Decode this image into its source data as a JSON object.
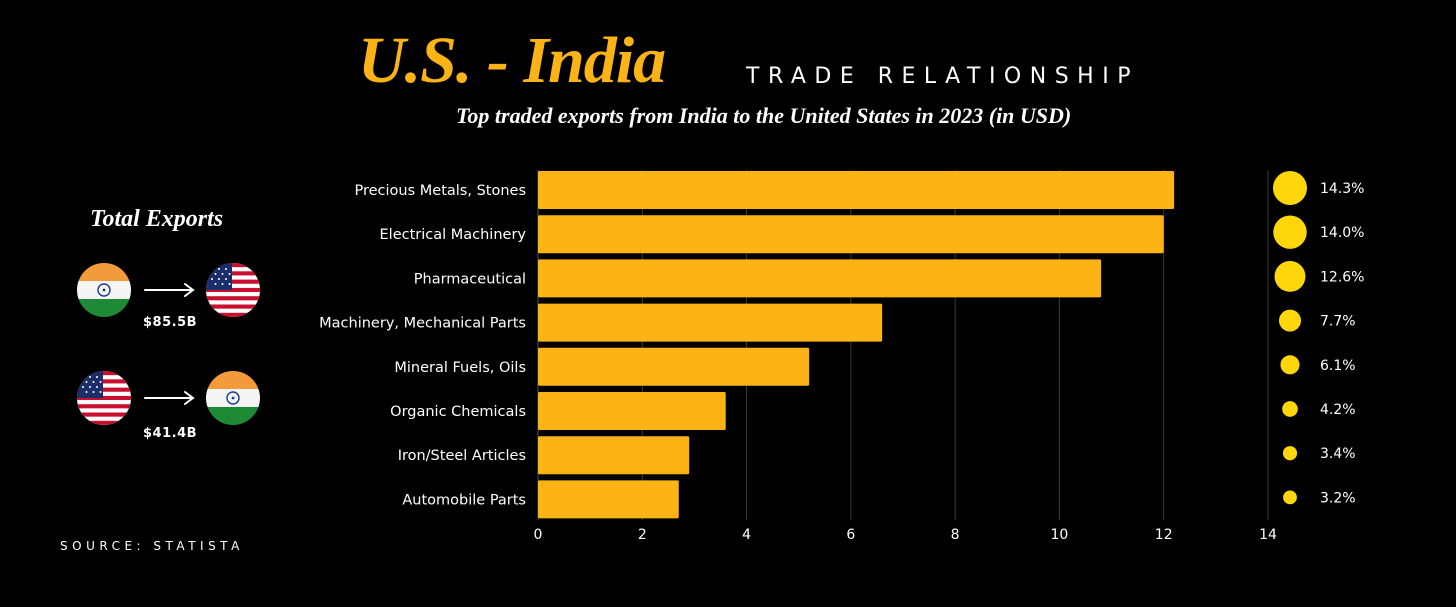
{
  "header": {
    "title": "U.S. - India",
    "caps": "TRADE RELATIONSHIP",
    "subtitle": "Top traded exports  from India to the United States in 2023  (in USD)"
  },
  "total_exports": {
    "title": "Total Exports",
    "flows": [
      {
        "from": "india-flag-icon",
        "to": "us-flag-icon",
        "value": "$85.5B"
      },
      {
        "from": "us-flag-icon",
        "to": "india-flag-icon",
        "value": "$41.4B"
      }
    ]
  },
  "source": "SOURCE: STATISTA",
  "colors": {
    "bar": "#fcb316",
    "dot": "#ffd60a",
    "grid": "#3a3a3a",
    "background": "#000000"
  },
  "chart_data": {
    "type": "bar",
    "orientation": "horizontal",
    "title": "Top traded exports  from India to the United States in 2023  (in USD)",
    "categories": [
      "Precious Metals, Stones",
      "Electrical Machinery",
      "Pharmaceutical",
      "Machinery, Mechanical Parts",
      "Mineral Fuels, Oils",
      "Organic Chemicals",
      "Iron/Steel Articles",
      "Automobile Parts"
    ],
    "values": [
      12.2,
      12.0,
      10.8,
      6.6,
      5.2,
      3.6,
      2.9,
      2.7
    ],
    "shares": [
      14.3,
      14.0,
      12.6,
      7.7,
      6.1,
      4.2,
      3.4,
      3.2
    ],
    "share_labels": [
      "14.3%",
      "14.0%",
      "12.6%",
      "7.7%",
      "6.1%",
      "4.2%",
      "3.4%",
      "3.2%"
    ],
    "xlim": [
      0,
      14
    ],
    "xticks": [
      0,
      2,
      4,
      6,
      8,
      10,
      12,
      14
    ],
    "grid": "vertical"
  }
}
